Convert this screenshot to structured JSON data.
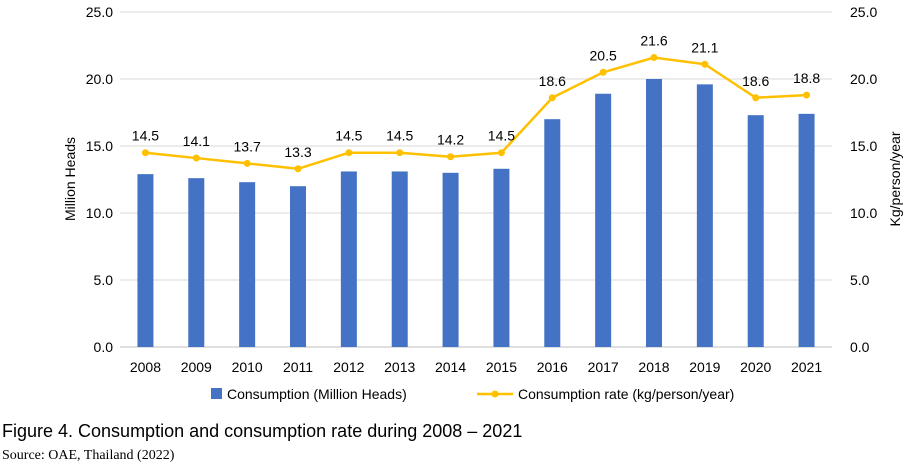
{
  "figure": {
    "caption": "Figure 4. Consumption and consumption rate during 2008 – 2021",
    "source": "Source: OAE, Thailand (2022)"
  },
  "chart_data": {
    "type": "bar",
    "categories": [
      "2008",
      "2009",
      "2010",
      "2011",
      "2012",
      "2013",
      "2014",
      "2015",
      "2016",
      "2017",
      "2018",
      "2019",
      "2020",
      "2021"
    ],
    "series": [
      {
        "name": "Consumption (Million Heads)",
        "type": "bar",
        "axis": "left",
        "color": "#4472C4",
        "values": [
          12.9,
          12.6,
          12.3,
          12.0,
          13.1,
          13.1,
          13.0,
          13.3,
          17.0,
          18.9,
          20.0,
          19.6,
          17.3,
          17.4
        ]
      },
      {
        "name": "Consumption rate (kg/person/year)",
        "type": "line",
        "axis": "right",
        "color": "#FFC000",
        "values": [
          14.5,
          14.1,
          13.7,
          13.3,
          14.5,
          14.5,
          14.2,
          14.5,
          18.6,
          20.5,
          21.6,
          21.1,
          18.6,
          18.8
        ],
        "labels": [
          "14.5",
          "14.1",
          "13.7",
          "13.3",
          "14.5",
          "14.5",
          "14.2",
          "14.5",
          "18.6",
          "20.5",
          "21.6",
          "21.1",
          "18.6",
          "18.8"
        ]
      }
    ],
    "ylabel": "Million Heads",
    "y2label": "Kg/person/year",
    "ylim": [
      0,
      25
    ],
    "y2lim": [
      0,
      25
    ],
    "yticks": [
      "0.0",
      "5.0",
      "10.0",
      "15.0",
      "20.0",
      "25.0"
    ],
    "y2ticks": [
      "0.0",
      "5.0",
      "10.0",
      "15.0",
      "20.0",
      "25.0"
    ],
    "grid": true,
    "legend_position": "bottom"
  }
}
